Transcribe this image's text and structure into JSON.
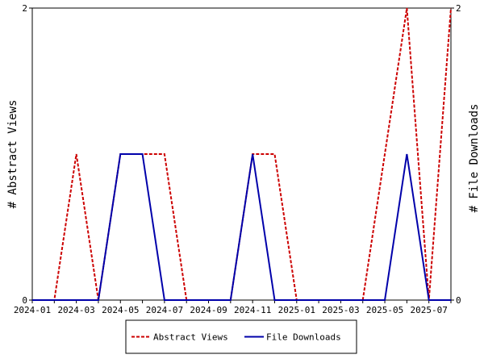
{
  "chart_data": {
    "type": "line",
    "x": [
      "2024-01",
      "2024-02",
      "2024-03",
      "2024-04",
      "2024-05",
      "2024-06",
      "2024-07",
      "2024-08",
      "2024-09",
      "2024-10",
      "2024-11",
      "2024-12",
      "2025-01",
      "2025-02",
      "2025-03",
      "2025-04",
      "2025-05",
      "2025-06",
      "2025-07",
      "2025-08"
    ],
    "x_tick_labels": [
      "2024-01",
      "2024-03",
      "2024-05",
      "2024-07",
      "2024-09",
      "2024-11",
      "2025-01",
      "2025-03",
      "2025-05",
      "2025-07"
    ],
    "series": [
      {
        "name": "Abstract Views",
        "axis": "left",
        "color": "#cc0000",
        "dash": "dashed",
        "values": [
          0,
          0,
          1,
          0,
          1,
          1,
          1,
          0,
          0,
          0,
          1,
          1,
          0,
          0,
          0,
          0,
          1,
          2,
          0,
          2
        ]
      },
      {
        "name": "File Downloads",
        "axis": "right",
        "color": "#0000aa",
        "dash": "solid",
        "values": [
          0,
          0,
          0,
          0,
          1,
          1,
          0,
          0,
          0,
          0,
          1,
          0,
          0,
          0,
          0,
          0,
          0,
          1,
          0,
          0
        ]
      }
    ],
    "ylabel": "# Abstract Views",
    "y2label": "# File Downloads",
    "ylim": [
      0,
      2
    ],
    "y2lim": [
      0,
      2
    ],
    "y_tick_labels": [
      "0",
      "2"
    ],
    "y2_tick_labels": [
      "0",
      "2"
    ],
    "grid": false,
    "legend_position": "bottom-center"
  }
}
